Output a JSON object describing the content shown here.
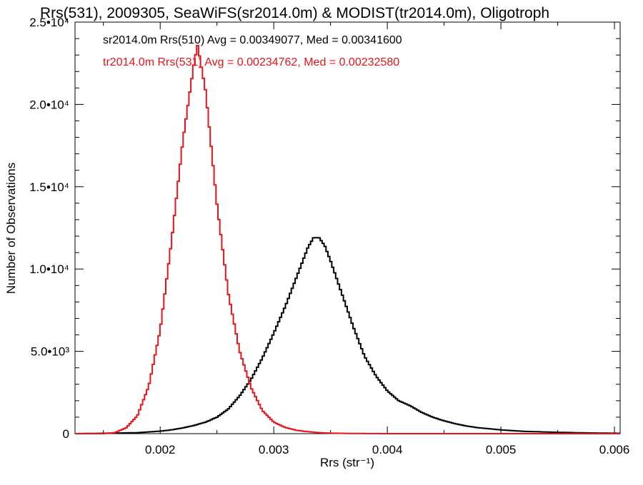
{
  "chart_data": {
    "type": "line",
    "title": "Rrs(531), 2009305, SeaWiFS(sr2014.0m) & MODIST(tr2014.0m), Oligotroph",
    "xlabel": "Rrs (str⁻¹)",
    "ylabel": "Number of Observations",
    "xlim": [
      0.00125,
      0.00605
    ],
    "ylim": [
      0,
      25000
    ],
    "xticks": [
      0.002,
      0.003,
      0.004,
      0.005,
      0.006
    ],
    "xtick_labels": [
      "0.002",
      "0.003",
      "0.004",
      "0.005",
      "0.006"
    ],
    "yticks": [
      0,
      5000,
      10000,
      15000,
      20000,
      25000
    ],
    "ytick_labels": [
      "0",
      "5.0•10³",
      "1.0•10⁴",
      "1.5•10⁴",
      "2.0•10⁴",
      "2.5•10⁴"
    ],
    "grid": false,
    "annotations": [
      {
        "text": "sr2014.0m Rrs(510) Avg = 0.00349077, Med = 0.00341600",
        "color": "#000000"
      },
      {
        "text": "tr2014.0m Rrs(531) Avg = 0.00234762, Med = 0.00232580",
        "color": "#e8141b"
      }
    ],
    "series": [
      {
        "color": "#000000",
        "style": "step",
        "x": [
          0.00125,
          0.0015,
          0.0018,
          0.002,
          0.0021,
          0.0022,
          0.0023,
          0.0024,
          0.0025,
          0.0026,
          0.0027,
          0.0028,
          0.0029,
          0.003,
          0.0031,
          0.0032,
          0.0033,
          0.00335,
          0.0034,
          0.00345,
          0.0035,
          0.0036,
          0.0037,
          0.0038,
          0.0039,
          0.004,
          0.0041,
          0.0042,
          0.0043,
          0.0044,
          0.0045,
          0.0046,
          0.0047,
          0.0048,
          0.005,
          0.0052,
          0.0055,
          0.0058,
          0.00605
        ],
        "y": [
          0,
          20,
          60,
          150,
          230,
          350,
          500,
          700,
          1000,
          1500,
          2300,
          3300,
          4600,
          6100,
          7700,
          9500,
          11300,
          11900,
          11900,
          11400,
          10500,
          8500,
          6500,
          4700,
          3500,
          2600,
          2000,
          1700,
          1300,
          1000,
          780,
          600,
          460,
          360,
          230,
          140,
          80,
          40,
          20
        ]
      },
      {
        "color": "#e8141b",
        "style": "step",
        "x": [
          0.00125,
          0.0015,
          0.0016,
          0.0017,
          0.0018,
          0.0019,
          0.002,
          0.0021,
          0.0022,
          0.0023,
          0.00233,
          0.0024,
          0.0025,
          0.0026,
          0.0027,
          0.0028,
          0.0029,
          0.003,
          0.0031,
          0.0032,
          0.0033,
          0.0034,
          0.0035,
          0.0037,
          0.004,
          0.0045,
          0.005,
          0.00605
        ],
        "y": [
          0,
          0,
          60,
          350,
          1100,
          2900,
          6300,
          11700,
          17800,
          22600,
          23600,
          20800,
          13900,
          8500,
          5000,
          2800,
          1400,
          700,
          380,
          200,
          120,
          60,
          30,
          10,
          0,
          0,
          0,
          0
        ]
      }
    ]
  }
}
